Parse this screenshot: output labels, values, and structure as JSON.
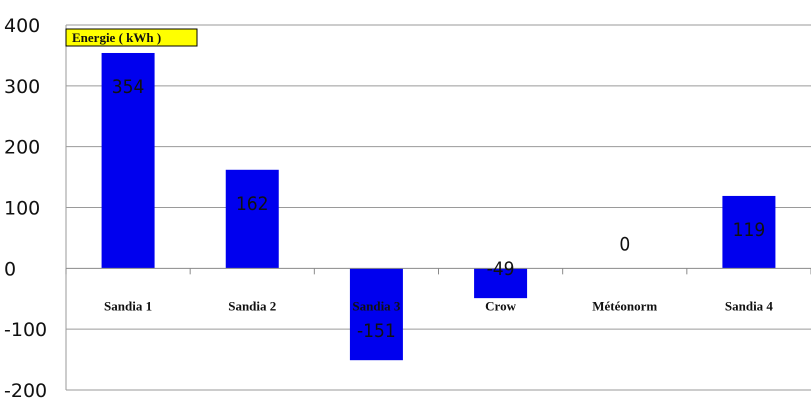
{
  "chart_data": {
    "type": "bar",
    "title": "",
    "xlabel": "",
    "ylabel": "",
    "legend": "Energie ( kWh )",
    "legend_position": "top-left",
    "categories": [
      "Sandia 1",
      "Sandia 2",
      "Sandia 3",
      "Crow",
      "Météonorm",
      "Sandia 4"
    ],
    "values": [
      354,
      162,
      -151,
      -49,
      0,
      119
    ],
    "data_labels": [
      "354",
      "162",
      "-151",
      "-49",
      "0",
      "119"
    ],
    "ylim": [
      -200,
      400
    ],
    "yticks": [
      "400",
      "300",
      "200",
      "100",
      "0",
      "-100",
      "-200"
    ],
    "grid": true,
    "bar_color": "#0000ee",
    "legend_bg": "#ffff00"
  }
}
